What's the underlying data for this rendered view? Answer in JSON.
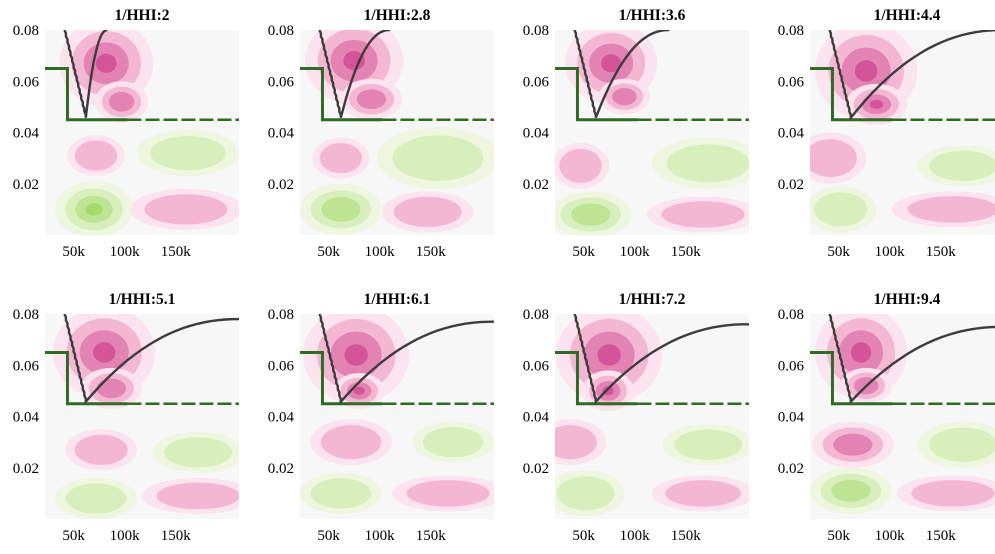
{
  "chart_data": [
    {
      "type": "heatmap",
      "title": "1/HHI:2",
      "x_ticks": [
        "50k",
        "100k",
        "150k"
      ],
      "y_ticks": [
        "0.08",
        "0.06",
        "0.04",
        "0.02"
      ],
      "blobs": [
        {
          "cx": 60,
          "cy": 0.067,
          "rx": 46,
          "ry": 0.017,
          "level": 3,
          "sign": 1
        },
        {
          "cx": 75,
          "cy": 0.052,
          "rx": 26,
          "ry": 0.008,
          "level": 2,
          "sign": 1
        },
        {
          "cx": 50,
          "cy": 0.031,
          "rx": 28,
          "ry": 0.008,
          "level": 1,
          "sign": 1
        },
        {
          "cx": 140,
          "cy": 0.032,
          "rx": 50,
          "ry": 0.009,
          "level": 1,
          "sign": -1
        },
        {
          "cx": 48,
          "cy": 0.01,
          "rx": 38,
          "ry": 0.011,
          "level": 3,
          "sign": -1
        },
        {
          "cx": 138,
          "cy": 0.01,
          "rx": 55,
          "ry": 0.008,
          "level": 1,
          "sign": 1
        }
      ],
      "boundary_y": 0.045,
      "boundary_x": 22,
      "boundary_top": 0.065,
      "curve_x_end": 61,
      "curve_y_end": 0.08
    },
    {
      "type": "heatmap",
      "title": "1/HHI:2.8",
      "x_ticks": [
        "50k",
        "100k",
        "150k"
      ],
      "y_ticks": [
        "0.08",
        "0.06",
        "0.04",
        "0.02"
      ],
      "blobs": [
        {
          "cx": 53,
          "cy": 0.068,
          "rx": 48,
          "ry": 0.017,
          "level": 3,
          "sign": 1
        },
        {
          "cx": 70,
          "cy": 0.053,
          "rx": 30,
          "ry": 0.008,
          "level": 2,
          "sign": 1
        },
        {
          "cx": 40,
          "cy": 0.03,
          "rx": 28,
          "ry": 0.008,
          "level": 1,
          "sign": 1
        },
        {
          "cx": 135,
          "cy": 0.03,
          "rx": 60,
          "ry": 0.012,
          "level": 1,
          "sign": -1
        },
        {
          "cx": 40,
          "cy": 0.01,
          "rx": 40,
          "ry": 0.01,
          "level": 2,
          "sign": -1
        },
        {
          "cx": 125,
          "cy": 0.009,
          "rx": 45,
          "ry": 0.008,
          "level": 1,
          "sign": 1
        }
      ],
      "boundary_y": 0.045,
      "boundary_x": 22,
      "boundary_top": 0.065,
      "curve_x_end": 88,
      "curve_y_end": 0.08
    },
    {
      "type": "heatmap",
      "title": "1/HHI:3.6",
      "x_ticks": [
        "50k",
        "100k",
        "150k"
      ],
      "y_ticks": [
        "0.08",
        "0.06",
        "0.04",
        "0.02"
      ],
      "blobs": [
        {
          "cx": 55,
          "cy": 0.067,
          "rx": 45,
          "ry": 0.016,
          "level": 3,
          "sign": 1
        },
        {
          "cx": 68,
          "cy": 0.054,
          "rx": 25,
          "ry": 0.007,
          "level": 2,
          "sign": 1
        },
        {
          "cx": 25,
          "cy": 0.027,
          "rx": 28,
          "ry": 0.009,
          "level": 1,
          "sign": 1
        },
        {
          "cx": 150,
          "cy": 0.028,
          "rx": 55,
          "ry": 0.01,
          "level": 1,
          "sign": -1
        },
        {
          "cx": 35,
          "cy": 0.008,
          "rx": 40,
          "ry": 0.009,
          "level": 2,
          "sign": -1
        },
        {
          "cx": 145,
          "cy": 0.008,
          "rx": 55,
          "ry": 0.007,
          "level": 1,
          "sign": 1
        }
      ],
      "boundary_y": 0.045,
      "boundary_x": 22,
      "boundary_top": 0.065,
      "curve_x_end": 112,
      "curve_y_end": 0.08
    },
    {
      "type": "heatmap",
      "title": "1/HHI:4.4",
      "x_ticks": [
        "50k",
        "100k",
        "150k"
      ],
      "y_ticks": [
        "0.08",
        "0.06",
        "0.04",
        "0.02"
      ],
      "blobs": [
        {
          "cx": 55,
          "cy": 0.064,
          "rx": 50,
          "ry": 0.019,
          "level": 3,
          "sign": 1
        },
        {
          "cx": 65,
          "cy": 0.051,
          "rx": 30,
          "ry": 0.008,
          "level": 3,
          "sign": 1
        },
        {
          "cx": 20,
          "cy": 0.03,
          "rx": 35,
          "ry": 0.01,
          "level": 1,
          "sign": 1
        },
        {
          "cx": 150,
          "cy": 0.027,
          "rx": 45,
          "ry": 0.008,
          "level": 1,
          "sign": -1
        },
        {
          "cx": 30,
          "cy": 0.01,
          "rx": 35,
          "ry": 0.009,
          "level": 1,
          "sign": -1
        },
        {
          "cx": 140,
          "cy": 0.01,
          "rx": 60,
          "ry": 0.007,
          "level": 1,
          "sign": 1
        }
      ],
      "boundary_y": 0.045,
      "boundary_x": 22,
      "boundary_top": 0.065,
      "curve_x_end": 190,
      "curve_y_end": 0.08
    },
    {
      "type": "heatmap",
      "title": "1/HHI:5.1",
      "x_ticks": [
        "50k",
        "100k",
        "150k"
      ],
      "y_ticks": [
        "0.08",
        "0.06",
        "0.04",
        "0.02"
      ],
      "blobs": [
        {
          "cx": 58,
          "cy": 0.065,
          "rx": 50,
          "ry": 0.018,
          "level": 3,
          "sign": 1
        },
        {
          "cx": 65,
          "cy": 0.051,
          "rx": 30,
          "ry": 0.008,
          "level": 2,
          "sign": 1
        },
        {
          "cx": 55,
          "cy": 0.027,
          "rx": 35,
          "ry": 0.008,
          "level": 1,
          "sign": 1
        },
        {
          "cx": 150,
          "cy": 0.026,
          "rx": 45,
          "ry": 0.008,
          "level": 1,
          "sign": -1
        },
        {
          "cx": 50,
          "cy": 0.008,
          "rx": 40,
          "ry": 0.008,
          "level": 1,
          "sign": -1
        },
        {
          "cx": 150,
          "cy": 0.009,
          "rx": 55,
          "ry": 0.007,
          "level": 1,
          "sign": 1
        }
      ],
      "boundary_y": 0.045,
      "boundary_x": 22,
      "boundary_top": 0.065,
      "curve_x_end": 190,
      "curve_y_end": 0.078
    },
    {
      "type": "heatmap",
      "title": "1/HHI:6.1",
      "x_ticks": [
        "50k",
        "100k",
        "150k"
      ],
      "y_ticks": [
        "0.08",
        "0.06",
        "0.04",
        "0.02"
      ],
      "blobs": [
        {
          "cx": 55,
          "cy": 0.064,
          "rx": 52,
          "ry": 0.019,
          "level": 3,
          "sign": 1
        },
        {
          "cx": 58,
          "cy": 0.05,
          "rx": 25,
          "ry": 0.007,
          "level": 4,
          "sign": 1
        },
        {
          "cx": 50,
          "cy": 0.03,
          "rx": 40,
          "ry": 0.009,
          "level": 1,
          "sign": 1
        },
        {
          "cx": 150,
          "cy": 0.03,
          "rx": 40,
          "ry": 0.008,
          "level": 1,
          "sign": -1
        },
        {
          "cx": 40,
          "cy": 0.01,
          "rx": 40,
          "ry": 0.008,
          "level": 1,
          "sign": -1
        },
        {
          "cx": 145,
          "cy": 0.01,
          "rx": 55,
          "ry": 0.007,
          "level": 1,
          "sign": 1
        }
      ],
      "boundary_y": 0.045,
      "boundary_x": 22,
      "boundary_top": 0.065,
      "curve_x_end": 190,
      "curve_y_end": 0.077
    },
    {
      "type": "heatmap",
      "title": "1/HHI:7.2",
      "x_ticks": [
        "50k",
        "100k",
        "150k"
      ],
      "y_ticks": [
        "0.08",
        "0.06",
        "0.04",
        "0.02"
      ],
      "blobs": [
        {
          "cx": 53,
          "cy": 0.064,
          "rx": 52,
          "ry": 0.019,
          "level": 3,
          "sign": 1
        },
        {
          "cx": 52,
          "cy": 0.05,
          "rx": 25,
          "ry": 0.008,
          "level": 4,
          "sign": 1
        },
        {
          "cx": 15,
          "cy": 0.03,
          "rx": 35,
          "ry": 0.009,
          "level": 1,
          "sign": 1
        },
        {
          "cx": 150,
          "cy": 0.029,
          "rx": 45,
          "ry": 0.008,
          "level": 1,
          "sign": -1
        },
        {
          "cx": 30,
          "cy": 0.01,
          "rx": 38,
          "ry": 0.009,
          "level": 1,
          "sign": -1
        },
        {
          "cx": 145,
          "cy": 0.01,
          "rx": 50,
          "ry": 0.007,
          "level": 1,
          "sign": 1
        }
      ],
      "boundary_y": 0.045,
      "boundary_x": 22,
      "boundary_top": 0.065,
      "curve_x_end": 190,
      "curve_y_end": 0.076
    },
    {
      "type": "heatmap",
      "title": "1/HHI:9.4",
      "x_ticks": [
        "50k",
        "100k",
        "150k"
      ],
      "y_ticks": [
        "0.08",
        "0.06",
        "0.04",
        "0.02"
      ],
      "blobs": [
        {
          "cx": 50,
          "cy": 0.065,
          "rx": 45,
          "ry": 0.018,
          "level": 3,
          "sign": 1
        },
        {
          "cx": 55,
          "cy": 0.052,
          "rx": 25,
          "ry": 0.007,
          "level": 2,
          "sign": 1
        },
        {
          "cx": 42,
          "cy": 0.029,
          "rx": 40,
          "ry": 0.009,
          "level": 2,
          "sign": 1
        },
        {
          "cx": 150,
          "cy": 0.029,
          "rx": 45,
          "ry": 0.009,
          "level": 1,
          "sign": -1
        },
        {
          "cx": 40,
          "cy": 0.011,
          "rx": 40,
          "ry": 0.009,
          "level": 2,
          "sign": -1
        },
        {
          "cx": 140,
          "cy": 0.01,
          "rx": 55,
          "ry": 0.007,
          "level": 1,
          "sign": 1
        }
      ],
      "boundary_y": 0.045,
      "boundary_x": 22,
      "boundary_top": 0.065,
      "curve_x_end": 190,
      "curve_y_end": 0.075
    }
  ],
  "colors": {
    "pink": [
      "#fbe3ef",
      "#f3b6d3",
      "#e383b3",
      "#d4549a",
      "#c51b7d"
    ],
    "green": [
      "#eef6df",
      "#d8efbd",
      "#bce493",
      "#a6d96a"
    ],
    "background": "#f7f7f7",
    "boundary": "#2f6b24",
    "curve": "#3c3c3c"
  },
  "x_range": [
    0,
    190
  ],
  "y_range": [
    0,
    0.08
  ]
}
